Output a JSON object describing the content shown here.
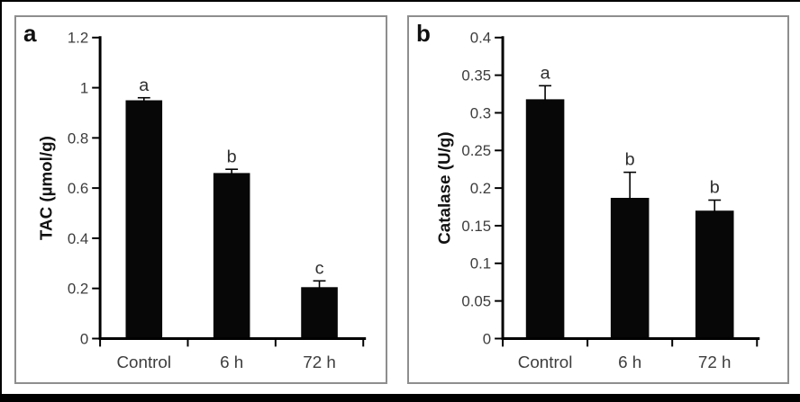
{
  "figure": {
    "background": "#ffffff",
    "frame_color": "#000000",
    "panel_border_color": "#8e8e8e"
  },
  "chart_data": [
    {
      "type": "bar",
      "panel_label": "a",
      "title": "",
      "ylabel": "TAC (µmol/g)",
      "xlabel": "",
      "categories": [
        "Control",
        "6 h",
        "72 h"
      ],
      "values": [
        0.95,
        0.66,
        0.205
      ],
      "errors_plus": [
        0.01,
        0.015,
        0.025
      ],
      "sig_letters": [
        "a",
        "b",
        "c"
      ],
      "ylim": [
        0,
        1.2
      ],
      "ytick_step": 0.2,
      "ytick_labels": [
        "0",
        "0.2",
        "0.4",
        "0.6",
        "0.8",
        "1",
        "1.2"
      ],
      "grid": false,
      "legend": "none",
      "bar_color": "#070707",
      "axis_color": "#000000",
      "tick_label_color": "#3d3d3d",
      "sig_letter_color": "#2f2f2f"
    },
    {
      "type": "bar",
      "panel_label": "b",
      "title": "",
      "ylabel": "Catalase (U/g)",
      "xlabel": "",
      "categories": [
        "Control",
        "6 h",
        "72 h"
      ],
      "values": [
        0.318,
        0.187,
        0.17
      ],
      "errors_plus": [
        0.018,
        0.034,
        0.014
      ],
      "sig_letters": [
        "a",
        "b",
        "b"
      ],
      "ylim": [
        0,
        0.4
      ],
      "ytick_step": 0.05,
      "ytick_labels": [
        "0",
        "0.05",
        "0.1",
        "0.15",
        "0.2",
        "0.25",
        "0.3",
        "0.35",
        "0.4"
      ],
      "grid": false,
      "legend": "none",
      "bar_color": "#070707",
      "axis_color": "#000000",
      "tick_label_color": "#3d3d3d",
      "sig_letter_color": "#2f2f2f"
    }
  ]
}
